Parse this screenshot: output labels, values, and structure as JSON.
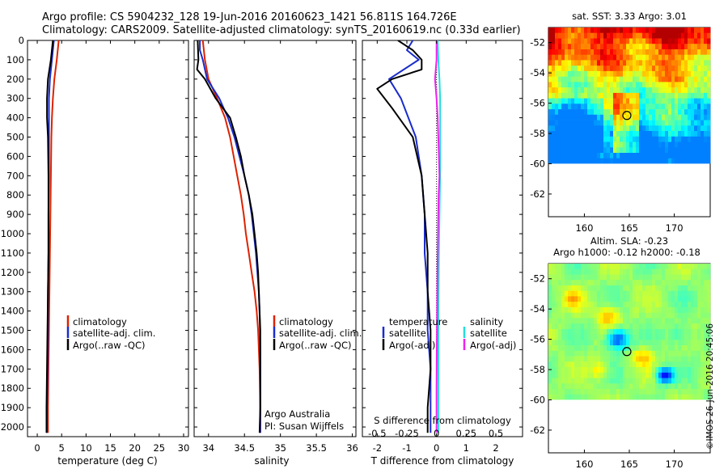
{
  "header": {
    "line1": "Argo profile: CS 5904232_128 19-Jun-2016 20160623_1421 56.811S 164.726E",
    "line2": "Climatology: CARS2009. Satellite-adjusted climatology: synTS_20160619.nc (0.33d earlier)"
  },
  "stamp": "©IMOS 26-Jun-2016 20:45:06",
  "colors": {
    "climatology": "#dd2200",
    "satellite": "#1a2ccc",
    "argo": "#000000",
    "sal_sat": "#22dddd",
    "sal_argo": "#ee22ee"
  },
  "chart_data": [
    {
      "type": "line",
      "name": "temperature",
      "xlabel": "temperature (deg C)",
      "ylabel": "",
      "xlim": [
        -2,
        31
      ],
      "ylim": [
        2050,
        0
      ],
      "xticks": [
        0,
        5,
        10,
        15,
        20,
        25,
        30
      ],
      "yticks": [
        0,
        100,
        200,
        300,
        400,
        500,
        600,
        700,
        800,
        900,
        1000,
        1100,
        1200,
        1300,
        1400,
        1500,
        1600,
        1700,
        1800,
        1900,
        2000
      ],
      "legend": [
        "climatology",
        "satellite-adj. clim.",
        "Argo(..raw -QC)"
      ],
      "series": [
        {
          "name": "climatology",
          "color": "#dd2200",
          "points": [
            [
              4.4,
              0
            ],
            [
              4.0,
              100
            ],
            [
              3.5,
              200
            ],
            [
              3.2,
              300
            ],
            [
              3.0,
              400
            ],
            [
              2.9,
              500
            ],
            [
              2.8,
              700
            ],
            [
              2.7,
              900
            ],
            [
              2.6,
              1100
            ],
            [
              2.5,
              1300
            ],
            [
              2.4,
              1500
            ],
            [
              2.3,
              1700
            ],
            [
              2.2,
              1900
            ],
            [
              2.2,
              2030
            ]
          ]
        },
        {
          "name": "satellite-adj. clim.",
          "color": "#1a2ccc",
          "points": [
            [
              3.4,
              0
            ],
            [
              3.0,
              100
            ],
            [
              2.6,
              200
            ],
            [
              2.4,
              300
            ],
            [
              2.4,
              400
            ],
            [
              2.4,
              500
            ],
            [
              2.4,
              700
            ],
            [
              2.3,
              900
            ],
            [
              2.3,
              1100
            ],
            [
              2.2,
              1300
            ],
            [
              2.2,
              1500
            ],
            [
              2.1,
              1700
            ],
            [
              2.0,
              1900
            ],
            [
              2.0,
              2030
            ]
          ]
        },
        {
          "name": "Argo(..raw -QC)",
          "color": "#000000",
          "points": [
            [
              3.2,
              0
            ],
            [
              2.8,
              100
            ],
            [
              2.2,
              200
            ],
            [
              2.0,
              300
            ],
            [
              2.0,
              400
            ],
            [
              2.2,
              500
            ],
            [
              2.3,
              700
            ],
            [
              2.3,
              900
            ],
            [
              2.3,
              1100
            ],
            [
              2.2,
              1300
            ],
            [
              2.1,
              1500
            ],
            [
              2.0,
              1700
            ],
            [
              1.9,
              1900
            ],
            [
              1.9,
              2030
            ]
          ]
        }
      ]
    },
    {
      "type": "line",
      "name": "salinity",
      "xlabel": "salinity",
      "ylabel": "",
      "xlim": [
        33.8,
        36.05
      ],
      "ylim": [
        2050,
        0
      ],
      "xticks": [
        34,
        34.5,
        35,
        35.5,
        36
      ],
      "legend": [
        "climatology",
        "satellite-adj. clim.",
        "Argo(..raw -QC)"
      ],
      "notes": [
        "Argo Australia",
        "PI: Susan Wijffels"
      ],
      "series": [
        {
          "name": "climatology",
          "color": "#dd2200",
          "points": [
            [
              33.92,
              0
            ],
            [
              33.95,
              100
            ],
            [
              34.0,
              200
            ],
            [
              34.12,
              300
            ],
            [
              34.23,
              400
            ],
            [
              34.3,
              500
            ],
            [
              34.35,
              600
            ],
            [
              34.4,
              700
            ],
            [
              34.45,
              800
            ],
            [
              34.49,
              900
            ],
            [
              34.52,
              1000
            ],
            [
              34.56,
              1100
            ],
            [
              34.6,
              1200
            ],
            [
              34.64,
              1300
            ],
            [
              34.67,
              1400
            ],
            [
              34.69,
              1500
            ],
            [
              34.71,
              1700
            ],
            [
              34.72,
              1900
            ],
            [
              34.72,
              2030
            ]
          ]
        },
        {
          "name": "satellite-adj. clim.",
          "color": "#1a2ccc",
          "points": [
            [
              33.88,
              0
            ],
            [
              33.88,
              50
            ],
            [
              33.92,
              100
            ],
            [
              33.98,
              200
            ],
            [
              34.15,
              300
            ],
            [
              34.27,
              400
            ],
            [
              34.36,
              500
            ],
            [
              34.43,
              600
            ],
            [
              34.5,
              700
            ],
            [
              34.56,
              800
            ],
            [
              34.6,
              900
            ],
            [
              34.63,
              1000
            ],
            [
              34.66,
              1100
            ],
            [
              34.68,
              1200
            ],
            [
              34.7,
              1300
            ],
            [
              34.71,
              1400
            ],
            [
              34.72,
              1600
            ],
            [
              34.72,
              1800
            ],
            [
              34.72,
              2030
            ]
          ]
        },
        {
          "name": "Argo(..raw -QC)",
          "color": "#000000",
          "points": [
            [
              33.85,
              0
            ],
            [
              33.86,
              100
            ],
            [
              33.84,
              150
            ],
            [
              33.95,
              200
            ],
            [
              34.1,
              300
            ],
            [
              34.3,
              400
            ],
            [
              34.38,
              500
            ],
            [
              34.45,
              600
            ],
            [
              34.5,
              700
            ],
            [
              34.56,
              800
            ],
            [
              34.61,
              900
            ],
            [
              34.64,
              1000
            ],
            [
              34.67,
              1100
            ],
            [
              34.69,
              1200
            ],
            [
              34.7,
              1300
            ],
            [
              34.72,
              1500
            ],
            [
              34.72,
              1700
            ],
            [
              34.72,
              1900
            ],
            [
              34.71,
              2030
            ]
          ]
        }
      ]
    },
    {
      "type": "line",
      "name": "difference",
      "xlabel": "T difference from climatology",
      "xlabel_top": "S difference from climatology",
      "ylabel": "",
      "xlim": [
        -2.5,
        2.9
      ],
      "ylim": [
        2050,
        0
      ],
      "xticks": [
        -2,
        -1,
        0,
        1,
        2
      ],
      "xticks_s": [
        -0.5,
        -0.25,
        0,
        0.25,
        0.5
      ],
      "legend_left": {
        "title": "temperature",
        "items": [
          "satellite",
          "Argo(-adj)"
        ]
      },
      "legend_right": {
        "title": "salinity",
        "items": [
          "satellite",
          "Argo(-adj)"
        ]
      },
      "series": [
        {
          "name": "temperature satellite",
          "color": "#1a2ccc",
          "points": [
            [
              -0.8,
              0
            ],
            [
              -1.0,
              50
            ],
            [
              -0.6,
              100
            ],
            [
              -1.1,
              150
            ],
            [
              -1.6,
              200
            ],
            [
              -1.2,
              300
            ],
            [
              -0.7,
              500
            ],
            [
              -0.5,
              700
            ],
            [
              -0.4,
              900
            ],
            [
              -0.4,
              1100
            ],
            [
              -0.3,
              1300
            ],
            [
              -0.3,
              1500
            ],
            [
              -0.2,
              1700
            ],
            [
              -0.2,
              2030
            ]
          ]
        },
        {
          "name": "temperature Argo(-adj)",
          "color": "#000000",
          "points": [
            [
              -1.3,
              0
            ],
            [
              -0.8,
              50
            ],
            [
              -0.5,
              100
            ],
            [
              -0.5,
              150
            ],
            [
              -1.5,
              200
            ],
            [
              -2.0,
              250
            ],
            [
              -1.5,
              350
            ],
            [
              -0.8,
              500
            ],
            [
              -0.5,
              700
            ],
            [
              -0.4,
              900
            ],
            [
              -0.3,
              1100
            ],
            [
              -0.3,
              1300
            ],
            [
              -0.2,
              1500
            ],
            [
              -0.2,
              1700
            ],
            [
              -0.3,
              1900
            ],
            [
              -0.3,
              2030
            ]
          ]
        },
        {
          "name": "salinity satellite",
          "color": "#22dddd",
          "points": [
            [
              0.04,
              0
            ],
            [
              0.06,
              100
            ],
            [
              0.1,
              200
            ],
            [
              0.12,
              300
            ],
            [
              0.12,
              500
            ],
            [
              0.12,
              700
            ],
            [
              0.1,
              900
            ],
            [
              0.08,
              1100
            ],
            [
              0.07,
              1300
            ],
            [
              0.06,
              1500
            ],
            [
              0.06,
              1700
            ],
            [
              0.06,
              2030
            ]
          ]
        },
        {
          "name": "salinity Argo(-adj)",
          "color": "#ee22ee",
          "points": [
            [
              0,
              0
            ],
            [
              0.0,
              100
            ],
            [
              -0.05,
              200
            ],
            [
              0.0,
              300
            ],
            [
              0.04,
              400
            ],
            [
              0.06,
              500
            ],
            [
              0.08,
              600
            ],
            [
              0.1,
              700
            ],
            [
              0.07,
              800
            ],
            [
              0.05,
              1000
            ],
            [
              0.03,
              1200
            ],
            [
              0.02,
              1400
            ],
            [
              0.01,
              1600
            ],
            [
              0.0,
              1800
            ],
            [
              0.0,
              2030
            ]
          ]
        }
      ]
    },
    {
      "type": "heatmap",
      "name": "sat-sst-map",
      "title": "sat. SST: 3.33 Argo: 3.01",
      "xlim": [
        156,
        174
      ],
      "ylim": [
        -63.5,
        -51
      ],
      "xticks": [
        160,
        165,
        170
      ],
      "yticks": [
        -52,
        -54,
        -56,
        -58,
        -60,
        -62
      ],
      "marker": {
        "lon": 164.726,
        "lat": -56.811
      }
    },
    {
      "type": "heatmap",
      "name": "sla-map",
      "title": "Altim. SLA: -0.23",
      "subtitle": "Argo h1000: -0.12 h2000: -0.18",
      "xlim": [
        156,
        174
      ],
      "ylim": [
        -63.5,
        -51
      ],
      "xticks": [
        160,
        165,
        170
      ],
      "yticks": [
        -52,
        -54,
        -56,
        -58,
        -60,
        -62
      ],
      "marker": {
        "lon": 164.726,
        "lat": -56.811
      }
    }
  ]
}
